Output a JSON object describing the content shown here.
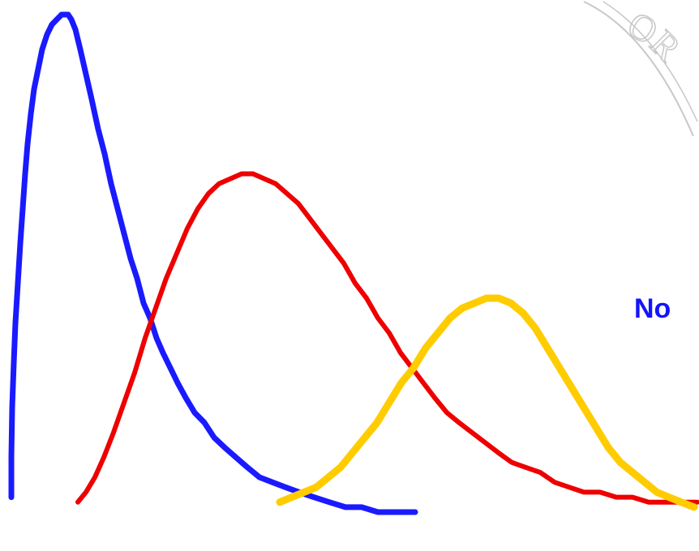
{
  "chart_data": {
    "type": "line",
    "title": "",
    "xlabel": "",
    "ylabel": "",
    "xlim": [
      0,
      862
    ],
    "ylim": [
      0,
      1
    ],
    "grid": false,
    "legend": "none",
    "series": [
      {
        "color": "#1a1aff",
        "x": [
          14,
          14,
          15,
          17,
          19,
          22,
          25,
          28,
          31,
          34,
          38,
          42,
          47,
          52,
          58,
          64,
          70,
          76,
          80,
          84,
          88,
          93,
          99,
          106,
          113,
          121,
          129,
          137,
          145,
          153,
          161,
          169,
          177,
          185,
          193,
          201,
          210,
          219,
          229,
          240,
          252,
          264,
          277,
          291,
          305,
          320,
          336,
          352,
          369,
          387,
          406,
          426,
          446,
          466,
          486,
          506,
          512
        ],
        "y": [
          0.03,
          0.11,
          0.21,
          0.3,
          0.38,
          0.46,
          0.54,
          0.61,
          0.68,
          0.74,
          0.8,
          0.85,
          0.89,
          0.93,
          0.96,
          0.98,
          0.99,
          1.0,
          1.0,
          1.0,
          0.99,
          0.97,
          0.93,
          0.88,
          0.83,
          0.77,
          0.72,
          0.66,
          0.61,
          0.56,
          0.51,
          0.47,
          0.42,
          0.39,
          0.35,
          0.32,
          0.29,
          0.26,
          0.23,
          0.2,
          0.18,
          0.15,
          0.13,
          0.11,
          0.09,
          0.07,
          0.06,
          0.05,
          0.04,
          0.03,
          0.02,
          0.01,
          0.01,
          0.0,
          0.0,
          0.0,
          0.0
        ]
      },
      {
        "color": "#ee0000",
        "x": [
          96,
          106,
          117,
          128,
          140,
          153,
          166,
          179,
          192,
          205,
          218,
          231,
          244,
          257,
          270,
          284,
          298,
          312,
          326,
          340,
          354,
          368,
          382,
          396,
          410,
          424,
          438,
          452,
          466,
          480,
          494,
          508,
          522,
          536,
          551,
          566,
          582,
          598,
          614,
          631,
          648,
          666,
          684,
          702,
          720,
          740,
          760,
          780,
          800,
          820,
          840,
          860
        ],
        "y": [
          0.02,
          0.04,
          0.07,
          0.11,
          0.16,
          0.22,
          0.28,
          0.35,
          0.41,
          0.47,
          0.52,
          0.57,
          0.61,
          0.64,
          0.66,
          0.67,
          0.68,
          0.68,
          0.67,
          0.66,
          0.64,
          0.62,
          0.59,
          0.56,
          0.53,
          0.5,
          0.46,
          0.43,
          0.39,
          0.36,
          0.32,
          0.29,
          0.26,
          0.23,
          0.2,
          0.18,
          0.16,
          0.14,
          0.12,
          0.1,
          0.09,
          0.08,
          0.06,
          0.05,
          0.04,
          0.04,
          0.03,
          0.03,
          0.02,
          0.02,
          0.02,
          0.02
        ]
      },
      {
        "color": "#ffcc00",
        "x": [
          345,
          360,
          375,
          390,
          405,
          420,
          435,
          450,
          465,
          480,
          495,
          510,
          525,
          540,
          555,
          570,
          585,
          600,
          615,
          630,
          645,
          660,
          675,
          690,
          705,
          720,
          735,
          750,
          765,
          780,
          795,
          810,
          825,
          840,
          856
        ],
        "y": [
          0.02,
          0.03,
          0.04,
          0.05,
          0.07,
          0.09,
          0.12,
          0.15,
          0.18,
          0.22,
          0.26,
          0.29,
          0.33,
          0.36,
          0.39,
          0.41,
          0.42,
          0.43,
          0.43,
          0.42,
          0.4,
          0.37,
          0.33,
          0.29,
          0.25,
          0.21,
          0.17,
          0.13,
          0.1,
          0.08,
          0.06,
          0.04,
          0.03,
          0.02,
          0.01
        ]
      }
    ]
  },
  "partial_label": "No",
  "partial_label_color": "#1414ff",
  "seal_letters": "OR",
  "seal_color": "#c8c8c8"
}
